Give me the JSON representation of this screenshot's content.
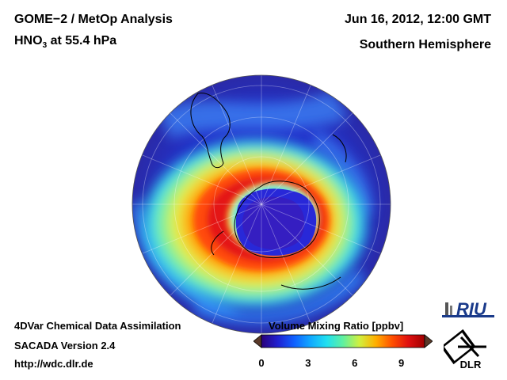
{
  "header": {
    "title_line1": "GOME−2 / MetOp Analysis",
    "title_species": "HNO",
    "title_subscript": "3",
    "title_level": " at 55.4 hPa",
    "date": "Jun 16, 2012, 12:00 GMT",
    "region": "Southern Hemisphere"
  },
  "footer": {
    "line1": "4DVar Chemical Data Assimilation",
    "line2": "SACADA Version 2.4",
    "line3": "http://wdc.dlr.de"
  },
  "colorbar": {
    "title": "Volume Mixing Ratio [ppbv]",
    "min": 0,
    "max": 10.5,
    "ticks": [
      {
        "value": 0,
        "label": "0"
      },
      {
        "value": 3,
        "label": "3"
      },
      {
        "value": 6,
        "label": "6"
      },
      {
        "value": 9,
        "label": "9"
      }
    ],
    "colors": [
      "#2a007a",
      "#2020d0",
      "#1060ff",
      "#10a8ff",
      "#20e0f0",
      "#60f0a0",
      "#d0f040",
      "#ffb000",
      "#ff5000",
      "#e01010",
      "#a00000"
    ]
  },
  "logos": {
    "riu": "RIU",
    "dlr": "DLR",
    "riu_icon": "riu-logo-icon",
    "dlr_icon": "dlr-logo-icon"
  }
}
